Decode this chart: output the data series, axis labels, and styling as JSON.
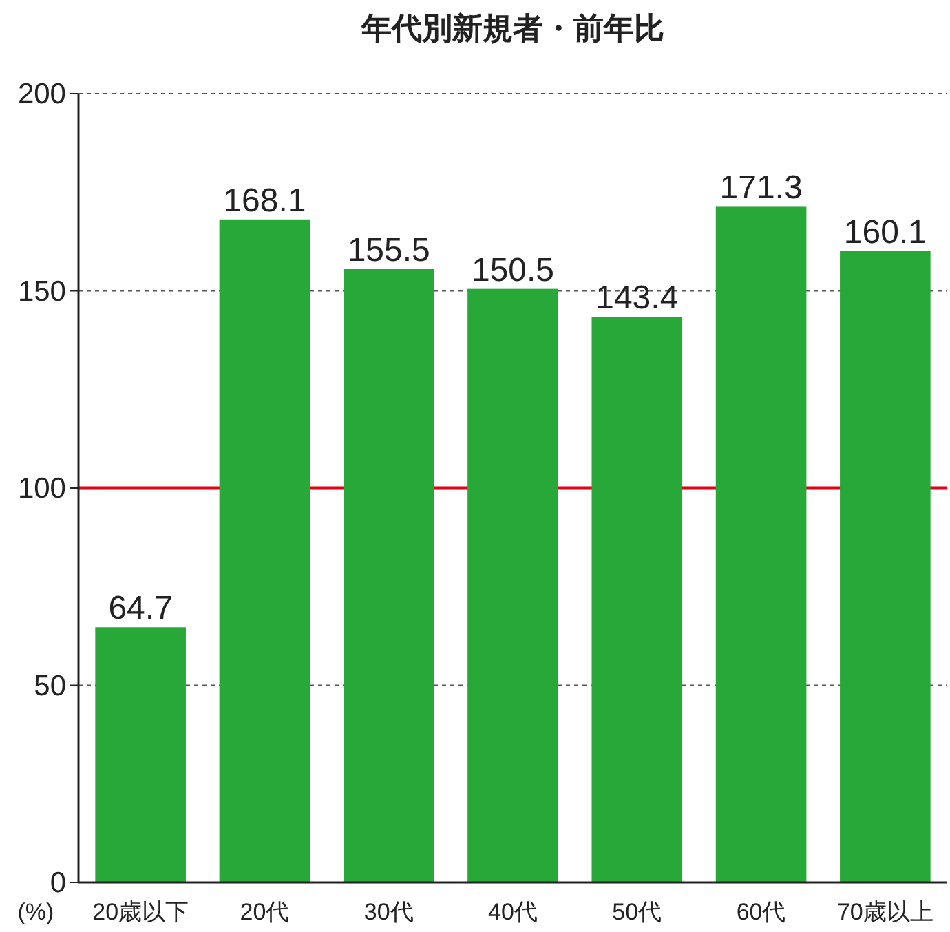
{
  "chart_data": {
    "type": "bar",
    "title": "年代別新規者・前年比",
    "ylabel": "(%)",
    "categories": [
      "20歳以下",
      "20代",
      "30代",
      "40代",
      "50代",
      "60代",
      "70歳以上"
    ],
    "values": [
      64.7,
      168.1,
      155.5,
      150.5,
      143.4,
      171.3,
      160.1
    ],
    "color": "#29a83a",
    "ylim": [
      0,
      200
    ],
    "yticks": [
      0,
      50,
      100,
      150,
      200
    ],
    "grid": "y",
    "data_labels": true,
    "ref_lines": [
      {
        "axis": "y",
        "value": 100,
        "color": "#e60012"
      }
    ]
  }
}
